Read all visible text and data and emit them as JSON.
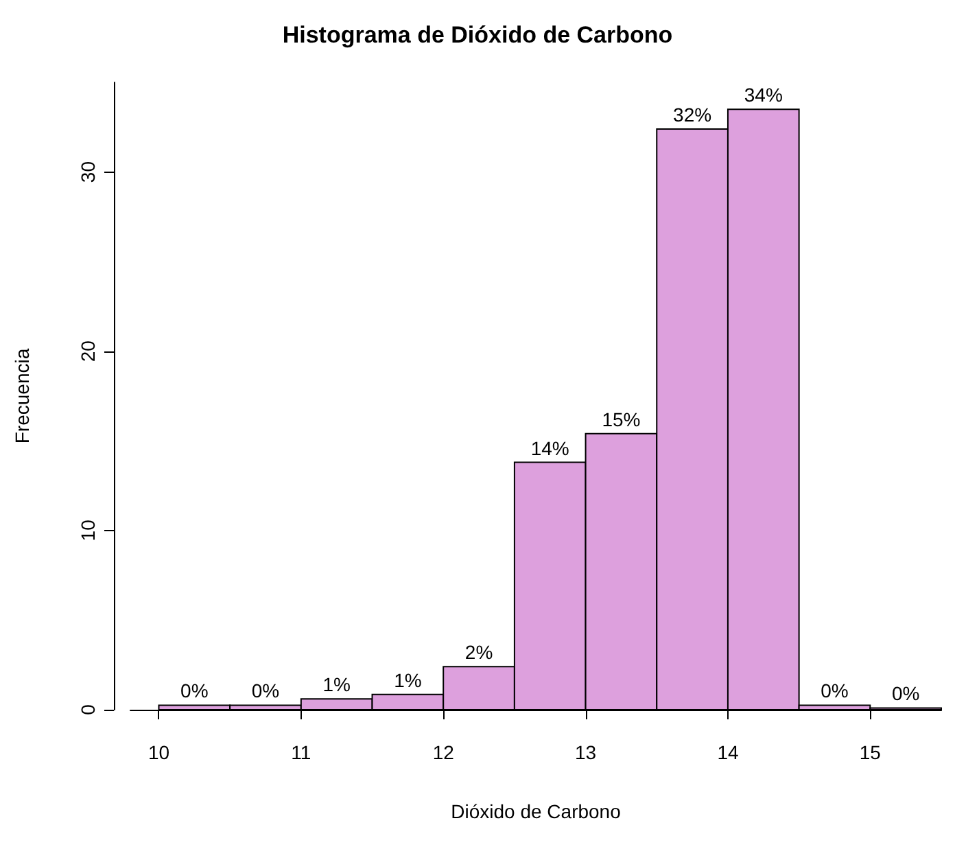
{
  "chart_data": {
    "type": "histogram",
    "title": "Histograma de Dióxido de Carbono",
    "xlabel": "Dióxido de Carbono",
    "ylabel": "Frecuencia",
    "bins": [
      10,
      10.5,
      11,
      11.5,
      12,
      12.5,
      13,
      13.5,
      14,
      14.5,
      15,
      15.5
    ],
    "values": [
      0.25,
      0.25,
      0.6,
      0.85,
      2.4,
      13.8,
      15.4,
      32.4,
      33.5,
      0.25,
      0.1
    ],
    "value_labels": [
      "0%",
      "0%",
      "1%",
      "1%",
      "2%",
      "14%",
      "15%",
      "32%",
      "34%",
      "0%",
      "0%"
    ],
    "color": "#dda0dd",
    "xlim": [
      9.8,
      15.5
    ],
    "xticks": [
      10,
      11,
      12,
      13,
      14,
      15
    ],
    "ylim": [
      0,
      35
    ],
    "yticks": [
      0,
      10,
      20,
      30
    ],
    "grid": false
  }
}
